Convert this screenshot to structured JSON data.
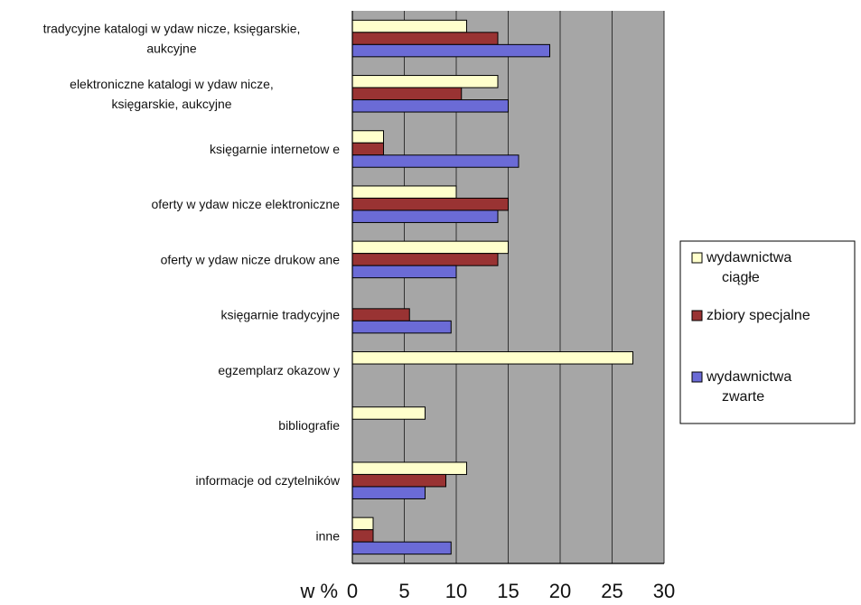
{
  "chart_data": {
    "type": "bar",
    "orientation": "horizontal",
    "categories": [
      [
        "tradycyjne katalogi w ydaw nicze, księgarskie,",
        "aukcyjne"
      ],
      [
        "elektroniczne katalogi w ydaw nicze,",
        "księgarskie, aukcyjne"
      ],
      [
        "księgarnie internetow e"
      ],
      [
        "oferty w ydaw nicze elektroniczne"
      ],
      [
        "oferty w ydaw nicze drukow ane"
      ],
      [
        "księgarnie tradycyjne"
      ],
      [
        "egzemplarz okazow y"
      ],
      [
        "bibliografie"
      ],
      [
        "informacje od czytelników"
      ],
      [
        "inne"
      ]
    ],
    "series": [
      {
        "name": [
          "wydawnictwa",
          "ciągłe"
        ],
        "color": "#ffffcc",
        "values": [
          11,
          14,
          3,
          10,
          15,
          0,
          27,
          7,
          11,
          2
        ]
      },
      {
        "name": [
          "zbiory specjalne"
        ],
        "color": "#993333",
        "values": [
          14,
          10.5,
          3,
          15,
          14,
          5.5,
          0,
          0,
          9,
          2
        ]
      },
      {
        "name": [
          "wydawnictwa",
          "zwarte"
        ],
        "color": "#6b6bd6",
        "values": [
          19,
          15,
          16,
          14,
          10,
          9.5,
          0,
          0,
          7,
          9.5
        ]
      }
    ],
    "xlim": [
      0,
      30
    ],
    "xticks": [
      0,
      5,
      10,
      15,
      20,
      25,
      30
    ],
    "xlabel": "w %",
    "grid": true,
    "plot_background": "#a6a6a6",
    "legend_position": "right"
  }
}
